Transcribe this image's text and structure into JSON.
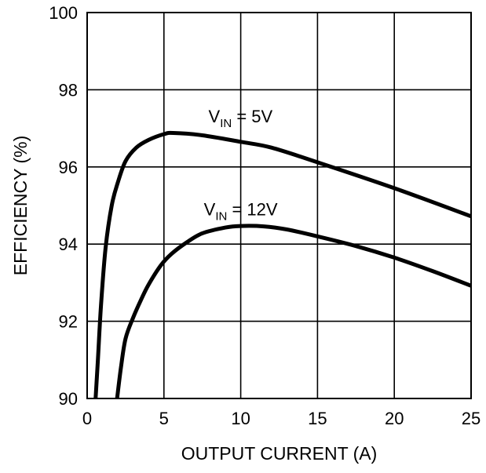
{
  "chart_data": {
    "type": "line",
    "title": "",
    "xlabel": "OUTPUT CURRENT (A)",
    "ylabel": "EFFICIENCY (%)",
    "xlim": [
      0,
      25
    ],
    "ylim": [
      90,
      100
    ],
    "xticks": [
      0,
      5,
      10,
      15,
      20,
      25
    ],
    "yticks": [
      90,
      92,
      94,
      96,
      98,
      100
    ],
    "grid": true,
    "series": [
      {
        "name": "VIN = 5V",
        "label_main": "V",
        "label_sub": "IN",
        "label_rest": " = 5V",
        "x": [
          0.55,
          0.7,
          0.9,
          1.2,
          1.6,
          2.0,
          2.5,
          3.2,
          4.0,
          5.0,
          5.6,
          7.5,
          10.0,
          12.0,
          15.0,
          20.0,
          25.0
        ],
        "y": [
          90.0,
          91.0,
          92.4,
          93.9,
          95.0,
          95.6,
          96.15,
          96.5,
          96.7,
          96.85,
          96.88,
          96.82,
          96.65,
          96.5,
          96.12,
          95.45,
          94.72
        ]
      },
      {
        "name": "VIN = 12V",
        "label_main": "V",
        "label_sub": "IN",
        "label_rest": " = 12V",
        "x": [
          1.95,
          2.2,
          2.5,
          3.0,
          3.5,
          4.0,
          4.8,
          5.5,
          6.5,
          7.5,
          9.0,
          10.0,
          11.5,
          13.0,
          15.0,
          17.5,
          20.0,
          22.5,
          25.0
        ],
        "y": [
          90.0,
          90.8,
          91.55,
          92.1,
          92.55,
          92.95,
          93.45,
          93.75,
          94.05,
          94.28,
          94.43,
          94.47,
          94.46,
          94.38,
          94.2,
          93.95,
          93.65,
          93.3,
          92.92
        ]
      }
    ],
    "annotations": [
      {
        "series": 0,
        "at_x": 7.9,
        "at_y": 97.15
      },
      {
        "series": 1,
        "at_x": 7.6,
        "at_y": 94.75
      }
    ]
  }
}
